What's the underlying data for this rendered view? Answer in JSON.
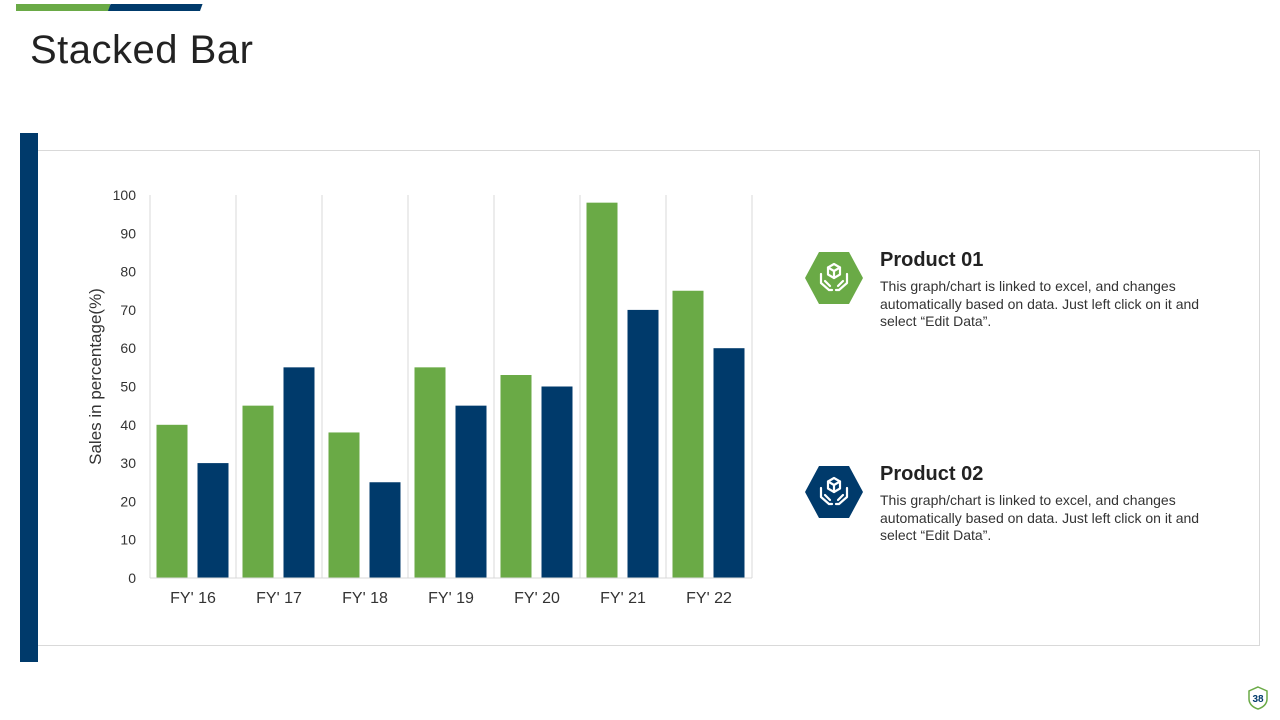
{
  "slide": {
    "title": "Stacked Bar",
    "page_number": "38",
    "colors": {
      "green": "#6aaa46",
      "blue": "#003a6b",
      "grid": "#d9d9d9",
      "text": "#222222"
    }
  },
  "legend": [
    {
      "title": "Product 01",
      "description": "This graph/chart is linked to excel, and changes automatically based on data. Just left click on it and select “Edit Data”.",
      "icon": "hands-box-icon",
      "color": "#6aaa46"
    },
    {
      "title": "Product 02",
      "description": "This graph/chart is linked to excel, and changes automatically based on data. Just left click on it and select “Edit Data”.",
      "icon": "hands-box-icon",
      "color": "#003a6b"
    }
  ],
  "chart_data": {
    "type": "bar",
    "categories": [
      "FY' 16",
      "FY' 17",
      "FY' 18",
      "FY' 19",
      "FY' 20",
      "FY' 21",
      "FY' 22"
    ],
    "series": [
      {
        "name": "Product 01",
        "color": "#6aaa46",
        "values": [
          40,
          45,
          38,
          55,
          53,
          98,
          75
        ]
      },
      {
        "name": "Product 02",
        "color": "#003a6b",
        "values": [
          30,
          55,
          25,
          45,
          50,
          70,
          60
        ]
      }
    ],
    "ylabel": "Sales in percentage(%)",
    "ylim": [
      0,
      100
    ],
    "yticks": [
      0,
      10,
      20,
      30,
      40,
      50,
      60,
      70,
      80,
      90,
      100
    ],
    "grid": "vertical category separators",
    "legend": "right"
  }
}
